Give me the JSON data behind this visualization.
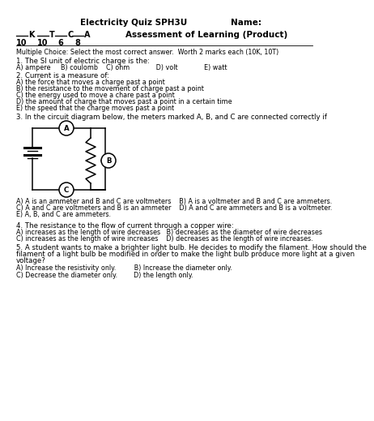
{
  "title_line1": "Electricity Quiz SPH3U",
  "title_name": "Name:",
  "assessment": "Assessment of Learning (Product)",
  "instruction": "Multiple Choice: Select the most correct answer.  Worth 2 marks each (10K, 10T)",
  "q1_stem": "1. The SI unit of electric charge is the:",
  "q1_choices": "A) ampere     B) coulomb    C) ohm             D) volt             E) watt",
  "q2_stem": "2. Current is a measure of:",
  "q2_choices": [
    "A) the force that moves a charge past a point",
    "B) the resistance to the movement of charge past a point",
    "C) the energy used to move a chare past a point",
    "D) the amount of charge that moves past a point in a certain time",
    "E) the speed that the charge moves past a point"
  ],
  "q3_stem": "3. In the circuit diagram below, the meters marked A, B, and C are connected correctly if",
  "q3_choices": [
    "A) A is an ammeter and B and C are voltmeters    B) A is a voltmeter and B and C are ammeters.",
    "C) A and C are voltmeters and B is an ammeter    D) A and C are ammeters and B is a voltmeter.",
    "E) A, B, and C are ammeters."
  ],
  "q4_stem": "4. The resistance to the flow of current through a copper wire:",
  "q4_choices": [
    "A) increases as the length of wire decreases   B) decreases as the diameter of wire decreases",
    "C) increases as the length of wire increases    D) decreases as the length of wire increases."
  ],
  "q5_stem": "5. A student wants to make a brighter light bulb. He decides to modify the filament. How should the\nfilament of a light bulb be modified in order to make the light bulb produce more light at a given\nvoltage?",
  "q5_choices": [
    "A) Increase the resistivity only.         B) Increase the diameter only.",
    "C) Decrease the diameter only.        D) the length only."
  ],
  "bg_color": "#ffffff",
  "text_color": "#000000",
  "grade_positions": [
    {
      "x": 10,
      "letter": "K",
      "value": "10"
    },
    {
      "x": 36,
      "letter": "T",
      "value": "10"
    },
    {
      "x": 58,
      "letter": "C",
      "value": "6"
    },
    {
      "x": 79,
      "letter": "A",
      "value": "8"
    }
  ]
}
